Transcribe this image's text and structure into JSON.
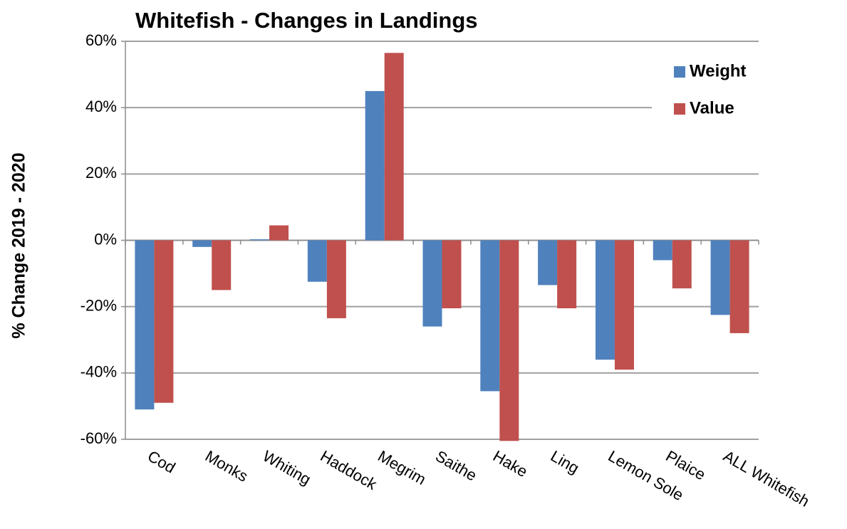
{
  "chart_data": {
    "type": "bar",
    "title": "Whitefish - Changes in Landings",
    "y_label": "% Change  2019 - 2020",
    "categories": [
      "Cod",
      "Monks",
      "Whiting",
      "Haddock",
      "Megrim",
      "Saithe",
      "Hake",
      "Ling",
      "Lemon Sole",
      "Plaice",
      "ALL Whitefish"
    ],
    "series": [
      {
        "name": "Weight",
        "color": "#4f81bd",
        "values": [
          -51,
          -2,
          0.3,
          -12.5,
          45,
          -26,
          -45.5,
          -13.5,
          -36,
          -6,
          -22.5
        ]
      },
      {
        "name": "Value",
        "color": "#c0504d",
        "values": [
          -49,
          -15,
          4.5,
          -23.5,
          56.5,
          -20.5,
          -60.5,
          -20.5,
          -39,
          -14.5,
          -28
        ]
      }
    ],
    "ylim": [
      -60,
      60
    ],
    "yticks": [
      {
        "value": -60,
        "label": "-60%"
      },
      {
        "value": -40,
        "label": "-40%"
      },
      {
        "value": -20,
        "label": "-20%"
      },
      {
        "value": 0,
        "label": "0%"
      },
      {
        "value": 20,
        "label": "20%"
      },
      {
        "value": 40,
        "label": "40%"
      },
      {
        "value": 60,
        "label": "60%"
      }
    ],
    "grid": true,
    "legend": "top-right"
  }
}
